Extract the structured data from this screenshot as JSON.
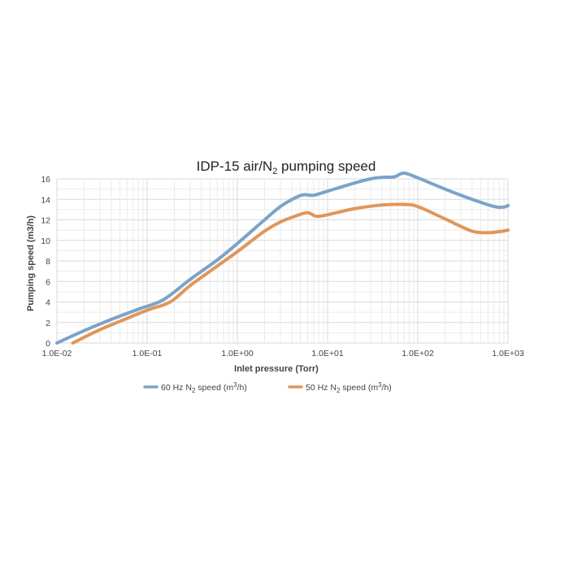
{
  "chart_data": {
    "type": "line",
    "title": {
      "prefix": "IDP-15 air/N",
      "sub": "2",
      "suffix": " pumping speed"
    },
    "xlabel": "Inlet pressure (Torr)",
    "ylabel": "Pumping speed (m3/h)",
    "x_scale": "log",
    "xlim": [
      0.01,
      1000
    ],
    "ylim": [
      0,
      16
    ],
    "x_ticks": [
      {
        "value": 0.01,
        "label": "1.0E-02"
      },
      {
        "value": 0.1,
        "label": "1.0E-01"
      },
      {
        "value": 1,
        "label": "1.0E+00"
      },
      {
        "value": 10,
        "label": "1.0E+01"
      },
      {
        "value": 100,
        "label": "1.0E+02"
      },
      {
        "value": 1000,
        "label": "1.0E+03"
      }
    ],
    "y_ticks": [
      0,
      2,
      4,
      6,
      8,
      10,
      12,
      14,
      16
    ],
    "grid": true,
    "legend_position": "bottom",
    "series": [
      {
        "legend": {
          "prefix": "60 Hz N",
          "sub": "2",
          "suffix": " speed (m",
          "sup": "3",
          "end": "/h)"
        },
        "color": "#7ba3c9",
        "points": [
          [
            0.01,
            0.0
          ],
          [
            0.02,
            1.2
          ],
          [
            0.04,
            2.3
          ],
          [
            0.08,
            3.3
          ],
          [
            0.15,
            4.2
          ],
          [
            0.3,
            6.2
          ],
          [
            0.6,
            8.1
          ],
          [
            1.0,
            9.7
          ],
          [
            2.0,
            12.0
          ],
          [
            3.0,
            13.3
          ],
          [
            4.5,
            14.2
          ],
          [
            5.5,
            14.45
          ],
          [
            7.0,
            14.4
          ],
          [
            10,
            14.8
          ],
          [
            20,
            15.6
          ],
          [
            30,
            16.0
          ],
          [
            40,
            16.15
          ],
          [
            55,
            16.2
          ],
          [
            70,
            16.55
          ],
          [
            100,
            16.1
          ],
          [
            200,
            15.0
          ],
          [
            400,
            14.0
          ],
          [
            700,
            13.3
          ],
          [
            900,
            13.25
          ],
          [
            1000,
            13.4
          ]
        ]
      },
      {
        "legend": {
          "prefix": "50 Hz N",
          "sub": "2",
          "suffix": " speed (m",
          "sup": "3",
          "end": "/h)"
        },
        "color": "#e0965a",
        "points": [
          [
            0.015,
            0.0
          ],
          [
            0.03,
            1.3
          ],
          [
            0.06,
            2.4
          ],
          [
            0.1,
            3.2
          ],
          [
            0.18,
            4.0
          ],
          [
            0.3,
            5.6
          ],
          [
            0.6,
            7.5
          ],
          [
            1.0,
            8.9
          ],
          [
            2.0,
            10.9
          ],
          [
            3.0,
            11.8
          ],
          [
            4.5,
            12.4
          ],
          [
            6.0,
            12.7
          ],
          [
            7.5,
            12.35
          ],
          [
            10,
            12.5
          ],
          [
            20,
            13.1
          ],
          [
            40,
            13.45
          ],
          [
            70,
            13.5
          ],
          [
            100,
            13.3
          ],
          [
            200,
            12.1
          ],
          [
            400,
            10.9
          ],
          [
            600,
            10.75
          ],
          [
            800,
            10.85
          ],
          [
            1000,
            11.0
          ]
        ]
      }
    ]
  }
}
